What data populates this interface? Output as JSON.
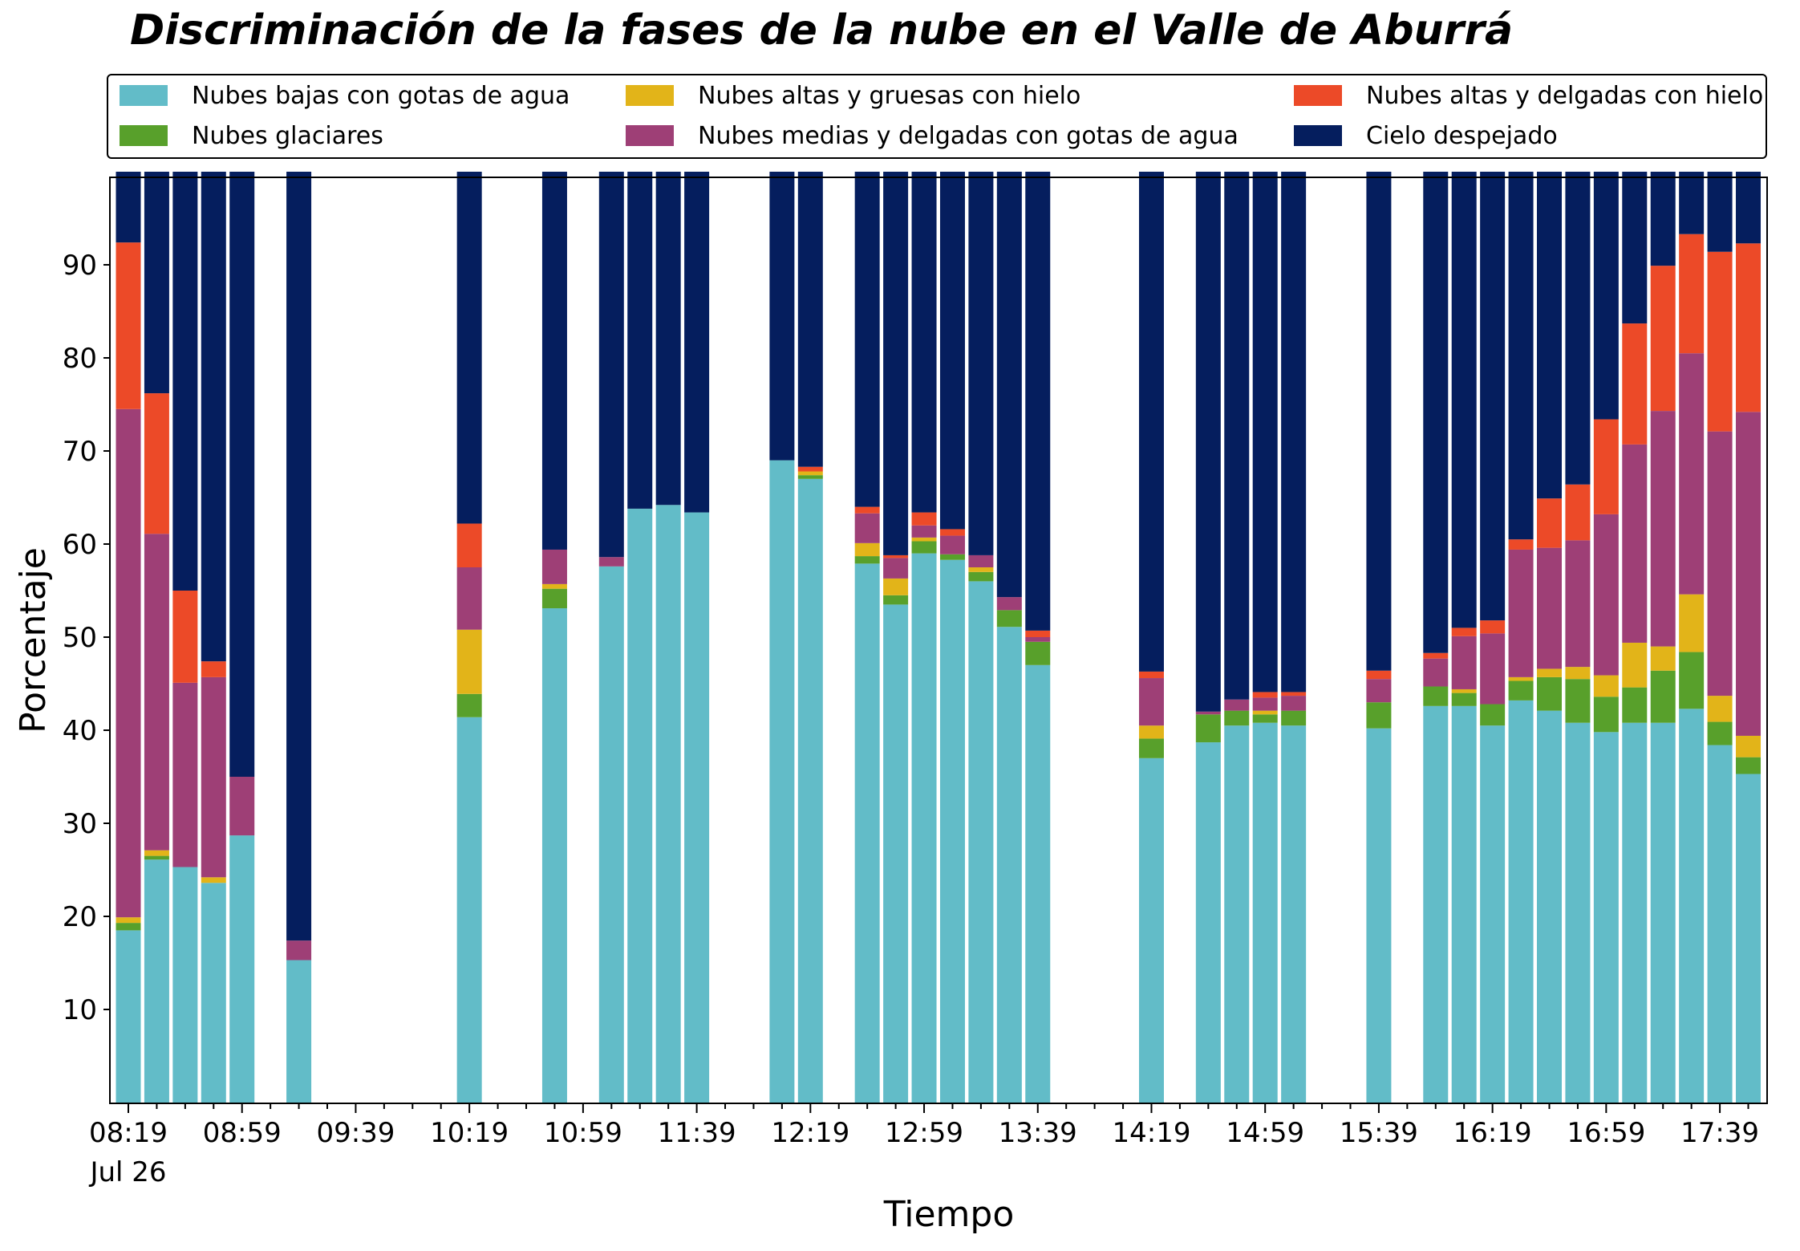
{
  "chart_data": {
    "type": "bar",
    "stacked": true,
    "title": "Discriminación de la fases de la nube en el Valle de Aburrá",
    "xlabel": "Tiempo",
    "ylabel": "Porcentaje",
    "ylim": [
      0,
      100
    ],
    "yticks": [
      10,
      20,
      30,
      40,
      50,
      60,
      70,
      80,
      90
    ],
    "xticks": [
      "08:19",
      "08:59",
      "09:39",
      "10:19",
      "10:59",
      "11:39",
      "12:19",
      "12:59",
      "13:39",
      "14:19",
      "14:59",
      "15:39",
      "16:19",
      "16:59",
      "17:39"
    ],
    "xtick_date": "Jul 26",
    "grid": false,
    "legend_placement": "top",
    "colors": [
      "#62bcc8",
      "#58a02b",
      "#e2b419",
      "#9e3f76",
      "#ec4a28",
      "#051e5e"
    ],
    "series": [
      {
        "name": "Nubes bajas con gotas de agua",
        "values": [
          18.5,
          26.1,
          25.3,
          23.6,
          28.7,
          null,
          15.3,
          null,
          null,
          null,
          null,
          null,
          41.4,
          null,
          null,
          53.1,
          null,
          57.6,
          63.8,
          64.2,
          63.4,
          null,
          null,
          69.0,
          67.0,
          null,
          57.9,
          53.5,
          59.0,
          58.3,
          56.0,
          51.1,
          47.0,
          null,
          null,
          null,
          37.0,
          null,
          38.7,
          40.5,
          40.8,
          40.5,
          null,
          null,
          40.2,
          null,
          42.6,
          42.6,
          40.5,
          43.2,
          42.1,
          40.8,
          39.8,
          40.8,
          40.8,
          42.3,
          38.4,
          35.3
        ]
      },
      {
        "name": "Nubes glaciares",
        "values": [
          0.8,
          0.4,
          0,
          0,
          0,
          null,
          0,
          null,
          null,
          null,
          null,
          null,
          2.5,
          null,
          null,
          2.1,
          null,
          0,
          0,
          0,
          0,
          null,
          null,
          0,
          0.4,
          null,
          0.8,
          1.0,
          1.3,
          0.6,
          1.0,
          1.8,
          2.5,
          null,
          null,
          null,
          2.1,
          null,
          3.0,
          1.6,
          0.9,
          1.6,
          null,
          null,
          2.8,
          null,
          2.1,
          1.4,
          2.3,
          2.1,
          3.6,
          4.7,
          3.8,
          3.8,
          5.6,
          6.1,
          2.5,
          1.8
        ]
      },
      {
        "name": "Nubes altas y gruesas con hielo",
        "values": [
          0.6,
          0.6,
          0,
          0.6,
          0,
          null,
          0,
          null,
          null,
          null,
          null,
          null,
          6.9,
          null,
          null,
          0.5,
          null,
          0,
          0,
          0,
          0,
          null,
          null,
          0,
          0.4,
          null,
          1.4,
          1.8,
          0.4,
          0,
          0.5,
          0,
          0,
          null,
          null,
          null,
          1.4,
          null,
          0,
          0,
          0.4,
          0,
          null,
          null,
          0,
          null,
          0,
          0.4,
          0,
          0.4,
          0.9,
          1.3,
          2.3,
          4.8,
          2.6,
          6.2,
          2.8,
          2.3
        ]
      },
      {
        "name": "Nubes medias y delgadas con gotas de agua",
        "values": [
          54.6,
          34.0,
          19.8,
          21.5,
          6.3,
          null,
          2.1,
          null,
          null,
          null,
          null,
          null,
          6.7,
          null,
          null,
          3.7,
          null,
          1.0,
          0,
          0,
          0,
          null,
          null,
          0,
          0,
          null,
          3.2,
          2.2,
          1.3,
          2.0,
          1.3,
          1.4,
          0.5,
          null,
          null,
          null,
          5.1,
          null,
          0.3,
          1.2,
          1.4,
          1.6,
          null,
          null,
          2.5,
          null,
          3.0,
          5.7,
          7.6,
          13.7,
          13.0,
          13.6,
          17.3,
          21.3,
          25.3,
          25.9,
          28.4,
          34.8
        ]
      },
      {
        "name": "Nubes altas y delgadas con hielo",
        "values": [
          17.9,
          15.1,
          9.9,
          1.7,
          0,
          null,
          0,
          null,
          null,
          null,
          null,
          null,
          4.7,
          null,
          null,
          0,
          null,
          0,
          0,
          0,
          0,
          null,
          null,
          0,
          0.5,
          null,
          0.7,
          0.3,
          1.4,
          0.7,
          0,
          0,
          0.7,
          null,
          null,
          null,
          0.7,
          null,
          0,
          0,
          0.6,
          0.4,
          null,
          null,
          0.9,
          null,
          0.6,
          0.9,
          1.4,
          1.1,
          5.3,
          6.0,
          10.2,
          13.0,
          15.6,
          12.8,
          19.3,
          18.1
        ]
      },
      {
        "name": "Cielo despejado",
        "values": [
          7.6,
          23.8,
          45.0,
          52.6,
          65.0,
          null,
          82.6,
          null,
          null,
          null,
          null,
          null,
          37.8,
          null,
          null,
          40.6,
          null,
          41.4,
          36.2,
          35.8,
          36.6,
          null,
          null,
          31.0,
          31.7,
          null,
          36.0,
          41.2,
          36.6,
          38.4,
          41.2,
          45.7,
          49.3,
          null,
          null,
          null,
          53.7,
          null,
          58.0,
          56.7,
          55.9,
          55.9,
          null,
          null,
          53.6,
          null,
          51.7,
          49.0,
          48.2,
          39.5,
          35.1,
          33.6,
          26.6,
          16.3,
          10.1,
          6.7,
          8.6,
          7.7
        ]
      }
    ]
  }
}
